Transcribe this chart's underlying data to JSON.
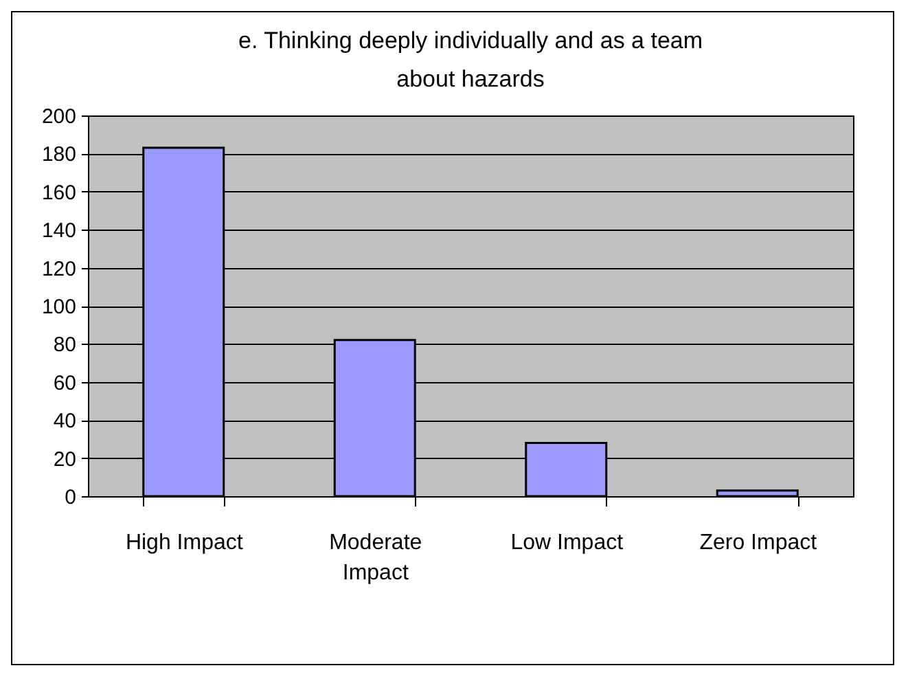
{
  "chart_data": {
    "type": "bar",
    "title": "e. Thinking deeply individually and as a team about hazards",
    "categories": [
      "High Impact",
      "Moderate Impact",
      "Low Impact",
      "Zero Impact"
    ],
    "values": [
      183,
      82,
      28,
      3
    ],
    "color": "#9999ff",
    "ylim": [
      0,
      200
    ],
    "yticks": [
      0,
      20,
      40,
      60,
      80,
      100,
      120,
      140,
      160,
      180,
      200
    ],
    "grid": "y"
  }
}
